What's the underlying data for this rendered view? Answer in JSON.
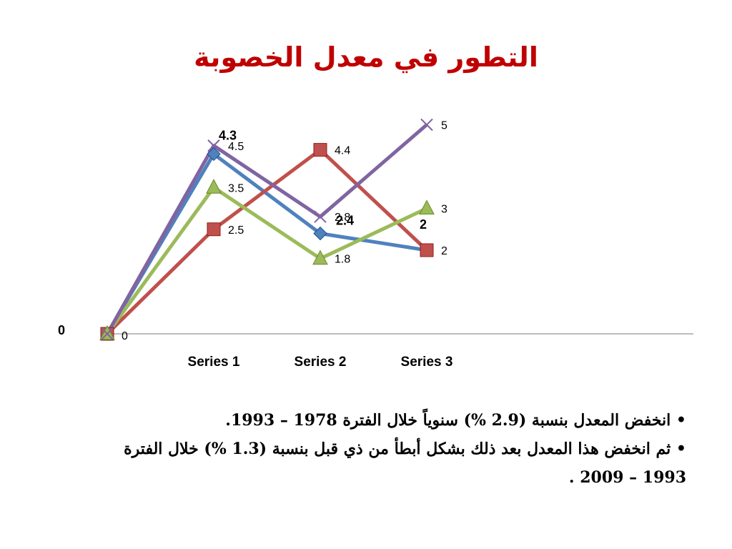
{
  "slide": {
    "title": "التطور في معدل الخصوبة",
    "bullets": [
      "• انخفض المعدل بنسبة (2.9 %) سنوياً خلال الفترة 1978 – 1993.",
      "• ثم انخفض هذا المعدل بعد ذلك بشكل أبطأ من ذي قبل بنسبة (1.3 %) خلال الفترة 1993 – 2009 ."
    ]
  },
  "chart_data": {
    "type": "line",
    "categories": [
      "",
      "Series 1",
      "Series 2",
      "Series 3"
    ],
    "ylim": [
      0,
      5.5
    ],
    "grid": false,
    "axis_zero_label": "0",
    "series": [
      {
        "color": "#4f81bd",
        "marker": "diamond",
        "values": [
          0,
          4.3,
          2.4,
          2
        ],
        "labels": [
          "",
          "4.3",
          "2.4",
          "2"
        ],
        "label_style": "bold"
      },
      {
        "color": "#c0504d",
        "marker": "square",
        "values": [
          0,
          2.5,
          4.4,
          2
        ],
        "labels": [
          "0",
          "2.5",
          "4.4",
          "2"
        ]
      },
      {
        "color": "#9bbb59",
        "marker": "triangle",
        "values": [
          0,
          3.5,
          1.8,
          3
        ],
        "labels": [
          "",
          "3.5",
          "1.8",
          "3"
        ]
      },
      {
        "color": "#8064a2",
        "marker": "x",
        "values": [
          0,
          4.5,
          2.8,
          5
        ],
        "labels": [
          "",
          "4.5",
          "2.8",
          "5"
        ]
      }
    ]
  }
}
